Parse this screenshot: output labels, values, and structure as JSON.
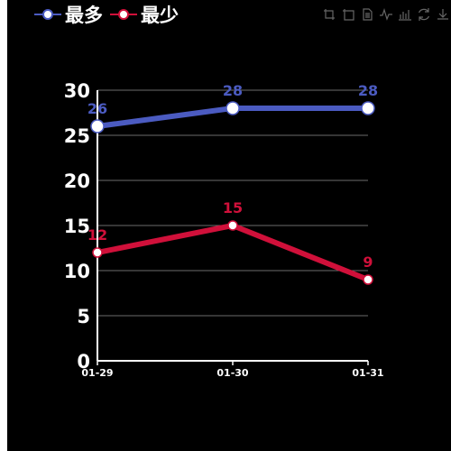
{
  "legend": [
    {
      "label": "最多",
      "color": "#4b5bc1"
    },
    {
      "label": "最少",
      "color": "#d0103a"
    }
  ],
  "toolbox": [
    {
      "name": "zoom-icon"
    },
    {
      "name": "zoom-reset-icon"
    },
    {
      "name": "data-view-icon"
    },
    {
      "name": "line-chart-icon"
    },
    {
      "name": "bar-chart-icon"
    },
    {
      "name": "restore-icon"
    },
    {
      "name": "save-image-icon"
    }
  ],
  "chart_data": {
    "type": "line",
    "categories": [
      "01-29",
      "01-30",
      "01-31"
    ],
    "series": [
      {
        "name": "最多",
        "values": [
          26,
          28,
          28
        ],
        "color": "#4b5bc1"
      },
      {
        "name": "最少",
        "values": [
          12,
          15,
          9
        ],
        "color": "#d0103a"
      }
    ],
    "ylim": [
      0,
      30
    ],
    "yticks": [
      0,
      5,
      10,
      15,
      20,
      25,
      30
    ],
    "grid": true,
    "legend_position": "top-left"
  }
}
